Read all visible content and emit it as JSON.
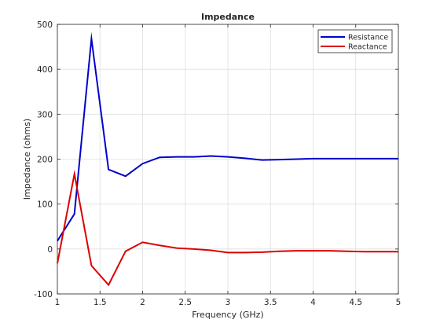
{
  "chart_data": {
    "type": "line",
    "title": "Impedance",
    "xlabel": "Frequency (GHz)",
    "ylabel": "Impedance (ohms)",
    "xlim": [
      1,
      5
    ],
    "ylim": [
      -100,
      500
    ],
    "grid": true,
    "legend_placement": "top-right",
    "x_ticks": [
      "1",
      "1.5",
      "2",
      "2.5",
      "3",
      "3.5",
      "4",
      "4.5",
      "5"
    ],
    "y_ticks": [
      "-100",
      "0",
      "100",
      "200",
      "300",
      "400",
      "500"
    ],
    "series": [
      {
        "name": "Resistance",
        "color": "#0000cc",
        "x": [
          1.0,
          1.2,
          1.4,
          1.6,
          1.8,
          2.0,
          2.2,
          2.4,
          2.6,
          2.8,
          3.0,
          3.2,
          3.4,
          3.6,
          3.8,
          4.0,
          4.2,
          4.4,
          4.6,
          4.8,
          5.0
        ],
        "y": [
          18,
          78,
          468,
          177,
          162,
          190,
          204,
          205,
          205,
          207,
          205,
          202,
          198,
          199,
          200,
          201,
          201,
          201,
          201,
          201,
          201
        ]
      },
      {
        "name": "Reactance",
        "color": "#dd0000",
        "x": [
          1.0,
          1.2,
          1.4,
          1.6,
          1.8,
          2.0,
          2.2,
          2.4,
          2.6,
          2.8,
          3.0,
          3.2,
          3.4,
          3.6,
          3.8,
          4.0,
          4.2,
          4.4,
          4.6,
          4.8,
          5.0
        ],
        "y": [
          -32,
          167,
          -37,
          -80,
          -5,
          15,
          8,
          2,
          0,
          -3,
          -8,
          -8,
          -7,
          -5,
          -4,
          -4,
          -4,
          -5,
          -6,
          -6,
          -6
        ]
      }
    ]
  }
}
